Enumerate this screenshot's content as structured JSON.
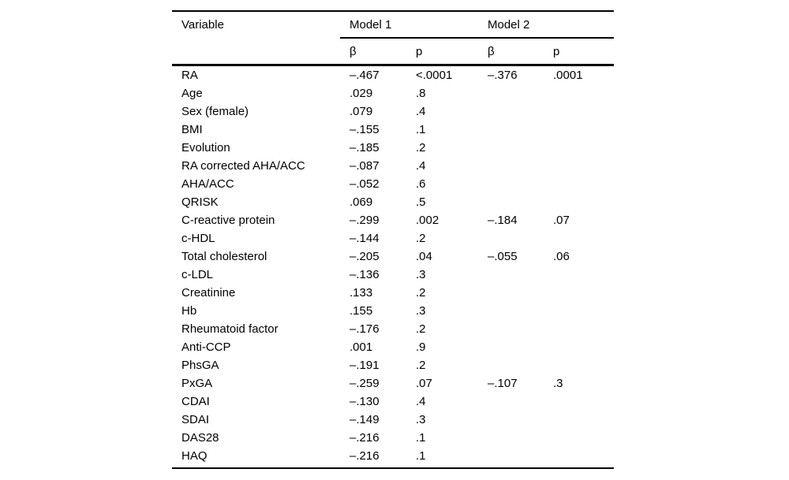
{
  "page": {
    "background": "#ffffff"
  },
  "table": {
    "colors": {
      "text": "#000000",
      "rule": "#000000",
      "background": "#ffffff"
    },
    "header": {
      "variable": "Variable",
      "model1": "Model 1",
      "model2": "Model 2",
      "beta": "β",
      "p": "p"
    },
    "rows": [
      {
        "variable": "RA",
        "m1_beta": "–.467",
        "m1_p": "<.0001",
        "m2_beta": "–.376",
        "m2_p": ".0001"
      },
      {
        "variable": "Age",
        "m1_beta": ".029",
        "m1_p": ".8",
        "m2_beta": "",
        "m2_p": ""
      },
      {
        "variable": "Sex (female)",
        "m1_beta": ".079",
        "m1_p": ".4",
        "m2_beta": "",
        "m2_p": ""
      },
      {
        "variable": "BMI",
        "m1_beta": "–.155",
        "m1_p": ".1",
        "m2_beta": "",
        "m2_p": ""
      },
      {
        "variable": "Evolution",
        "m1_beta": "–.185",
        "m1_p": ".2",
        "m2_beta": "",
        "m2_p": ""
      },
      {
        "variable": "RA corrected AHA/ACC",
        "m1_beta": "–.087",
        "m1_p": ".4",
        "m2_beta": "",
        "m2_p": ""
      },
      {
        "variable": "AHA/ACC",
        "m1_beta": "–.052",
        "m1_p": ".6",
        "m2_beta": "",
        "m2_p": ""
      },
      {
        "variable": "QRISK",
        "m1_beta": ".069",
        "m1_p": ".5",
        "m2_beta": "",
        "m2_p": ""
      },
      {
        "variable": "C-reactive protein",
        "m1_beta": "–.299",
        "m1_p": ".002",
        "m2_beta": "–.184",
        "m2_p": ".07"
      },
      {
        "variable": "c-HDL",
        "m1_beta": "–.144",
        "m1_p": ".2",
        "m2_beta": "",
        "m2_p": ""
      },
      {
        "variable": "Total cholesterol",
        "m1_beta": "–.205",
        "m1_p": ".04",
        "m2_beta": "–.055",
        "m2_p": ".06"
      },
      {
        "variable": "c-LDL",
        "m1_beta": "–.136",
        "m1_p": ".3",
        "m2_beta": "",
        "m2_p": ""
      },
      {
        "variable": "Creatinine",
        "m1_beta": ".133",
        "m1_p": ".2",
        "m2_beta": "",
        "m2_p": ""
      },
      {
        "variable": "Hb",
        "m1_beta": ".155",
        "m1_p": ".3",
        "m2_beta": "",
        "m2_p": ""
      },
      {
        "variable": "Rheumatoid factor",
        "m1_beta": "–.176",
        "m1_p": ".2",
        "m2_beta": "",
        "m2_p": ""
      },
      {
        "variable": "Anti-CCP",
        "m1_beta": ".001",
        "m1_p": ".9",
        "m2_beta": "",
        "m2_p": ""
      },
      {
        "variable": "PhsGA",
        "m1_beta": "–.191",
        "m1_p": ".2",
        "m2_beta": "",
        "m2_p": ""
      },
      {
        "variable": "PxGA",
        "m1_beta": "–.259",
        "m1_p": ".07",
        "m2_beta": "–.107",
        "m2_p": ".3"
      },
      {
        "variable": "CDAI",
        "m1_beta": "–.130",
        "m1_p": ".4",
        "m2_beta": "",
        "m2_p": ""
      },
      {
        "variable": "SDAI",
        "m1_beta": "–.149",
        "m1_p": ".3",
        "m2_beta": "",
        "m2_p": ""
      },
      {
        "variable": "DAS28",
        "m1_beta": "–.216",
        "m1_p": ".1",
        "m2_beta": "",
        "m2_p": ""
      },
      {
        "variable": "HAQ",
        "m1_beta": "–.216",
        "m1_p": ".1",
        "m2_beta": "",
        "m2_p": ""
      }
    ]
  }
}
